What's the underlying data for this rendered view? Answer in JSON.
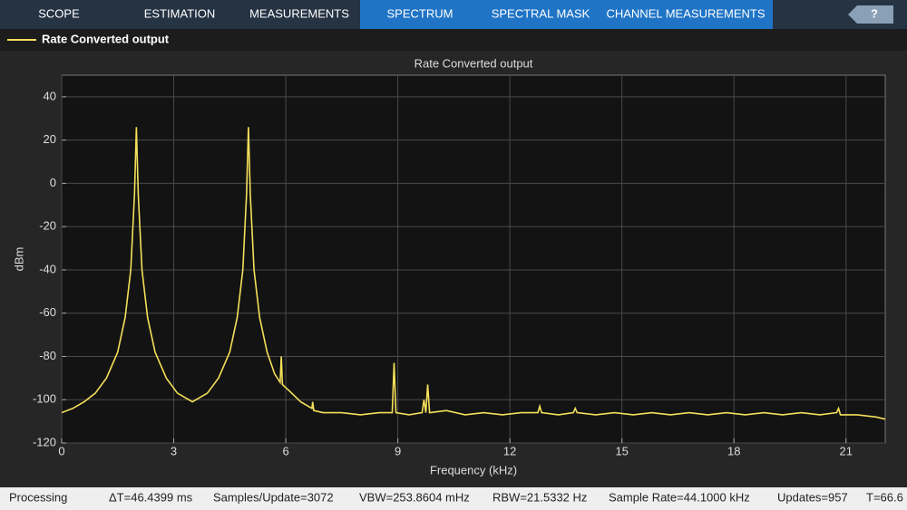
{
  "toolbar": {
    "tabs": [
      "SCOPE",
      "ESTIMATION",
      "MEASUREMENTS",
      "SPECTRUM",
      "SPECTRAL MASK",
      "CHANNEL MEASUREMENTS"
    ],
    "help": "?"
  },
  "chart_data": {
    "type": "line",
    "title": "Rate Converted output",
    "xlabel": "Frequency (kHz)",
    "ylabel": "dBm",
    "x": [
      0,
      0.3,
      0.6,
      0.9,
      1.2,
      1.5,
      1.7,
      1.85,
      1.95,
      2.0,
      2.05,
      2.15,
      2.3,
      2.5,
      2.8,
      3.1,
      3.5,
      3.9,
      4.2,
      4.5,
      4.7,
      4.85,
      4.95,
      5.0,
      5.05,
      5.15,
      5.3,
      5.5,
      5.7,
      5.85,
      5.88,
      5.91,
      6.1,
      6.4,
      6.7,
      6.72,
      6.75,
      7.0,
      7.5,
      8.0,
      8.5,
      8.85,
      8.9,
      8.95,
      9.3,
      9.65,
      9.7,
      9.75,
      9.8,
      9.85,
      10.3,
      10.8,
      11.3,
      11.8,
      12.3,
      12.75,
      12.8,
      12.85,
      13.3,
      13.7,
      13.75,
      13.8,
      14.3,
      14.8,
      15.3,
      15.8,
      16.3,
      16.8,
      17.3,
      17.8,
      18.3,
      18.8,
      19.3,
      19.8,
      20.3,
      20.75,
      20.8,
      20.85,
      21.3,
      21.8,
      22.05
    ],
    "series": [
      {
        "name": "Rate Converted output",
        "color": "#f5e05a",
        "values": [
          -106,
          -104,
          -101,
          -97,
          -90,
          -78,
          -62,
          -40,
          -5,
          26,
          -5,
          -40,
          -62,
          -78,
          -90,
          -97,
          -101,
          -97,
          -90,
          -78,
          -62,
          -40,
          -5,
          26,
          -5,
          -40,
          -62,
          -78,
          -88,
          -92,
          -80,
          -93,
          -96,
          -101,
          -104,
          -101,
          -105,
          -106,
          -106,
          -107,
          -106,
          -106,
          -83,
          -106,
          -107,
          -106,
          -100,
          -106,
          -93,
          -106,
          -105,
          -107,
          -106,
          -107,
          -106,
          -106,
          -103,
          -106,
          -107,
          -106,
          -104,
          -106,
          -107,
          -106,
          -107,
          -106,
          -107,
          -106,
          -107,
          -106,
          -107,
          -106,
          -107,
          -106,
          -107,
          -106,
          -104,
          -107,
          -107,
          -108,
          -109
        ]
      }
    ],
    "xlim": [
      0,
      22.05
    ],
    "ylim": [
      -120,
      50
    ],
    "xticks": [
      0,
      3,
      6,
      9,
      12,
      15,
      18,
      21
    ],
    "yticks": [
      -120,
      -100,
      -80,
      -60,
      -40,
      -20,
      0,
      20,
      40
    ],
    "grid": true
  },
  "status_bar": {
    "items": [
      "Processing",
      "ΔT=46.4399 ms",
      "Samples/Update=3072",
      "VBW=253.8604 mHz",
      "RBW=21.5332 Hz",
      "Sample Rate=44.1000 kHz",
      "Updates=957",
      "T=66.6"
    ]
  }
}
